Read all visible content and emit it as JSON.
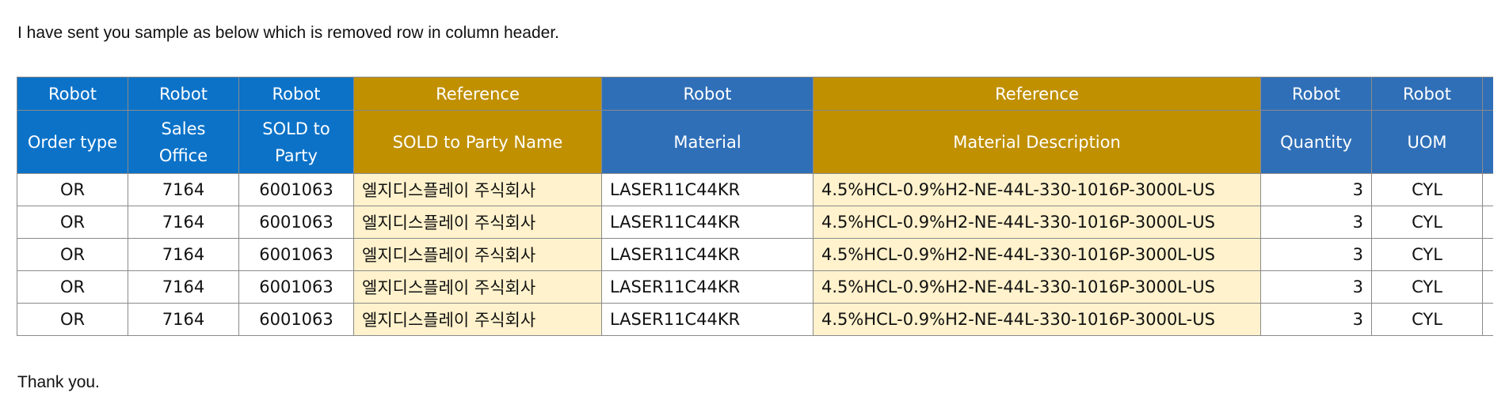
{
  "message": {
    "intro": "I have sent you sample as below which is removed row in column header.",
    "closing": "Thank you."
  },
  "table": {
    "group_row": [
      "Robot",
      "Robot",
      "Robot",
      "Reference",
      "Robot",
      "Reference",
      "Robot",
      "Robot",
      ""
    ],
    "columns": [
      "Order type",
      "Sales Office",
      "SOLD to Party",
      "SOLD to Party Name",
      "Material",
      "Material Description",
      "Quantity",
      "UOM",
      ""
    ],
    "rows": [
      [
        "OR",
        "7164",
        "6001063",
        "엘지디스플레이 주식회사",
        "LASER11C44KR",
        "4.5%HCL-0.9%H2-NE-44L-330-1016P-3000L-US",
        "3",
        "CYL",
        ""
      ],
      [
        "OR",
        "7164",
        "6001063",
        "엘지디스플레이 주식회사",
        "LASER11C44KR",
        "4.5%HCL-0.9%H2-NE-44L-330-1016P-3000L-US",
        "3",
        "CYL",
        ""
      ],
      [
        "OR",
        "7164",
        "6001063",
        "엘지디스플레이 주식회사",
        "LASER11C44KR",
        "4.5%HCL-0.9%H2-NE-44L-330-1016P-3000L-US",
        "3",
        "CYL",
        ""
      ],
      [
        "OR",
        "7164",
        "6001063",
        "엘지디스플레이 주식회사",
        "LASER11C44KR",
        "4.5%HCL-0.9%H2-NE-44L-330-1016P-3000L-US",
        "3",
        "CYL",
        ""
      ],
      [
        "OR",
        "7164",
        "6001063",
        "엘지디스플레이 주식회사",
        "LASER11C44KR",
        "4.5%HCL-0.9%H2-NE-44L-330-1016P-3000L-US",
        "3",
        "CYL",
        ""
      ]
    ]
  },
  "colors": {
    "robot_header": "#0b72c8",
    "robot_header_alt": "#2f6fb8",
    "reference_header": "#c09000",
    "reference_cell": "#fff2cc",
    "grid_line": "#8a8a8a"
  }
}
